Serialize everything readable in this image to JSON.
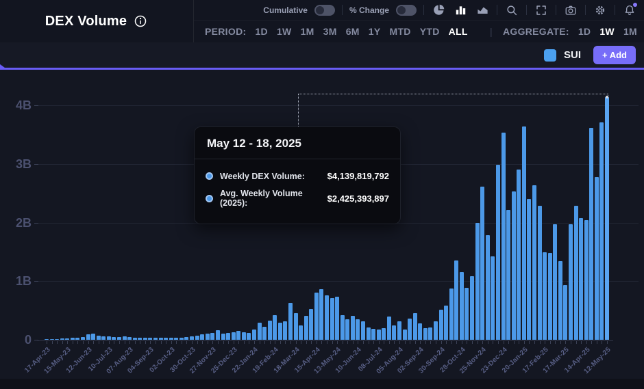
{
  "header": {
    "title": "DEX Volume",
    "toggles": [
      {
        "label": "Cumulative",
        "state": "off"
      },
      {
        "label": "% Change",
        "state": "off"
      }
    ],
    "chart_type_icons": [
      {
        "name": "pie-chart-icon",
        "active": false
      },
      {
        "name": "bar-chart-icon",
        "active": true
      },
      {
        "name": "area-chart-icon",
        "active": false
      }
    ],
    "tool_icons": [
      "search-icon",
      "fullscreen-icon",
      "camera-icon",
      "settings-icon",
      "notifications-icon"
    ],
    "notification_dot_color": "#8678f9",
    "period": {
      "label": "PERIOD:",
      "options": [
        "1D",
        "1W",
        "1M",
        "3M",
        "6M",
        "1Y",
        "MTD",
        "YTD",
        "ALL"
      ],
      "active": "ALL"
    },
    "aggregate": {
      "label": "AGGREGATE:",
      "options": [
        "1D",
        "1W",
        "1M"
      ],
      "active": "1W"
    }
  },
  "legend": {
    "series_label": "SUI",
    "swatch_color": "#4ba0f0",
    "add_button_label": "+ Add",
    "add_button_color": "#776df8"
  },
  "splitter_color": "#695cf5",
  "tooltip": {
    "title": "May 12 - 18, 2025",
    "rows": [
      {
        "label": "Weekly DEX Volume:",
        "value": "$4,139,819,792"
      },
      {
        "label": "Avg. Weekly Volume (2025):",
        "value": "$2,425,393,897"
      }
    ]
  },
  "chart_data": {
    "type": "bar",
    "title": "DEX Volume",
    "series_name": "SUI",
    "unit": "USD billions",
    "bar_color": "#4c99e8",
    "grid": true,
    "legend_position": "top-right",
    "ylim": [
      0,
      4.35
    ],
    "ytick_labels": [
      "0",
      "1B",
      "2B",
      "3B",
      "4B"
    ],
    "ytick_values": [
      0,
      1,
      2,
      3,
      4
    ],
    "x_is_weekly": true,
    "xtick_every_n_bars": 4,
    "xtick_labels": [
      "17-Apr-23",
      "15-May-23",
      "12-Jun-23",
      "10-Jul-23",
      "07-Aug-23",
      "04-Sep-23",
      "02-Oct-23",
      "30-Oct-23",
      "27-Nov-23",
      "25-Dec-23",
      "22-Jan-24",
      "19-Feb-24",
      "18-Mar-24",
      "15-Apr-24",
      "13-May-24",
      "10-Jun-24",
      "08-Jul-24",
      "05-Aug-24",
      "02-Sep-24",
      "30-Sep-24",
      "28-Oct-24",
      "25-Nov-24",
      "23-Dec-24",
      "20-Jan-25",
      "17-Feb-25",
      "17-Mar-25",
      "14-Apr-25",
      "12-May-25"
    ],
    "values_billions": [
      0.005,
      0.01,
      0.01,
      0.02,
      0.02,
      0.03,
      0.03,
      0.05,
      0.09,
      0.1,
      0.07,
      0.06,
      0.06,
      0.05,
      0.05,
      0.06,
      0.05,
      0.04,
      0.04,
      0.03,
      0.03,
      0.03,
      0.03,
      0.03,
      0.03,
      0.04,
      0.04,
      0.05,
      0.06,
      0.07,
      0.09,
      0.1,
      0.12,
      0.16,
      0.1,
      0.12,
      0.13,
      0.15,
      0.13,
      0.12,
      0.17,
      0.29,
      0.22,
      0.33,
      0.42,
      0.29,
      0.32,
      0.63,
      0.45,
      0.25,
      0.41,
      0.53,
      0.8,
      0.86,
      0.76,
      0.71,
      0.74,
      0.42,
      0.35,
      0.41,
      0.35,
      0.31,
      0.21,
      0.19,
      0.17,
      0.2,
      0.4,
      0.24,
      0.32,
      0.18,
      0.36,
      0.45,
      0.28,
      0.2,
      0.21,
      0.32,
      0.51,
      0.58,
      0.87,
      1.35,
      1.15,
      0.89,
      1.09,
      2.0,
      2.61,
      1.78,
      1.42,
      2.99,
      3.53,
      2.22,
      2.53,
      2.9,
      3.64,
      2.4,
      2.63,
      2.28,
      1.49,
      1.48,
      1.97,
      1.34,
      0.93,
      1.97,
      2.29,
      2.07,
      2.04,
      3.61,
      2.77,
      3.71,
      4.1398
    ],
    "hovered_bar_index": 108,
    "hovered_value_billions": 4.139819792
  }
}
